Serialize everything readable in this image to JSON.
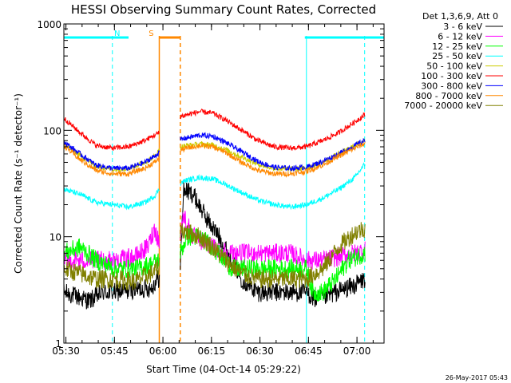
{
  "chart_data": {
    "type": "line",
    "title": "HESSI Observing Summary Count Rates, Corrected",
    "xlabel": "Start Time (04-Oct-14 05:29:22)",
    "ylabel": "Corrected Count Rate (s⁻¹ detector⁻¹)",
    "x_range_minutes": [
      0,
      99
    ],
    "x_ticks": [
      {
        "m": 0.63,
        "label": "05:30"
      },
      {
        "m": 15.63,
        "label": "05:45"
      },
      {
        "m": 30.63,
        "label": "06:00"
      },
      {
        "m": 45.63,
        "label": "06:15"
      },
      {
        "m": 60.63,
        "label": "06:30"
      },
      {
        "m": 75.63,
        "label": "06:45"
      },
      {
        "m": 90.63,
        "label": "07:00"
      }
    ],
    "y_scale": "log",
    "ylim": [
      1,
      1000
    ],
    "y_tick_labels": [
      "1",
      "10",
      "100",
      "1000"
    ],
    "legend_header": "Det 1,3,6,9, Att 0",
    "series": [
      {
        "name": "3 - 6 keV",
        "color": "#000000",
        "points": [
          [
            0,
            3
          ],
          [
            8,
            2.5
          ],
          [
            12,
            3
          ],
          [
            16,
            3
          ],
          [
            22,
            3.2
          ],
          [
            27,
            3.3
          ],
          [
            29,
            4
          ],
          [
            36,
            5
          ],
          [
            37,
            28
          ],
          [
            40,
            25
          ],
          [
            44,
            15
          ],
          [
            48,
            10
          ],
          [
            52,
            6
          ],
          [
            55,
            4
          ],
          [
            60,
            3
          ],
          [
            65,
            3
          ],
          [
            70,
            3
          ],
          [
            75,
            3
          ],
          [
            78,
            2.5
          ],
          [
            84,
            3
          ],
          [
            90,
            3.5
          ],
          [
            93,
            4
          ]
        ]
      },
      {
        "name": "6 - 12 keV",
        "color": "#ff00ff",
        "points": [
          [
            0,
            6
          ],
          [
            10,
            6
          ],
          [
            16,
            6
          ],
          [
            22,
            6.5
          ],
          [
            26,
            8
          ],
          [
            28,
            12
          ],
          [
            30,
            8
          ],
          [
            36,
            10
          ],
          [
            37,
            16
          ],
          [
            40,
            10
          ],
          [
            46,
            8
          ],
          [
            52,
            7
          ],
          [
            58,
            7
          ],
          [
            65,
            7
          ],
          [
            70,
            7
          ],
          [
            75,
            6
          ],
          [
            80,
            6
          ],
          [
            85,
            6.5
          ],
          [
            90,
            7
          ],
          [
            93,
            7.5
          ]
        ]
      },
      {
        "name": "12 - 25 keV",
        "color": "#00ff00",
        "points": [
          [
            0,
            7
          ],
          [
            5,
            8
          ],
          [
            10,
            6
          ],
          [
            16,
            5
          ],
          [
            22,
            5
          ],
          [
            27,
            5.5
          ],
          [
            29,
            6
          ],
          [
            36,
            7
          ],
          [
            38,
            10
          ],
          [
            42,
            10
          ],
          [
            46,
            8
          ],
          [
            52,
            5
          ],
          [
            58,
            5
          ],
          [
            63,
            5
          ],
          [
            68,
            5
          ],
          [
            72,
            5
          ],
          [
            75,
            5
          ],
          [
            77,
            3
          ],
          [
            80,
            3
          ],
          [
            84,
            4
          ],
          [
            88,
            6
          ],
          [
            93,
            7
          ]
        ]
      },
      {
        "name": "25 - 50 keV",
        "color": "#00ffff",
        "points": [
          [
            0,
            28
          ],
          [
            5,
            25
          ],
          [
            10,
            21
          ],
          [
            15,
            20
          ],
          [
            20,
            19
          ],
          [
            25,
            21
          ],
          [
            28,
            24
          ],
          [
            29.5,
            28
          ],
          [
            36,
            32
          ],
          [
            38,
            34
          ],
          [
            42,
            36
          ],
          [
            46,
            35
          ],
          [
            50,
            31
          ],
          [
            55,
            26
          ],
          [
            60,
            22
          ],
          [
            65,
            20
          ],
          [
            70,
            19
          ],
          [
            75,
            20
          ],
          [
            80,
            23
          ],
          [
            85,
            28
          ],
          [
            90,
            36
          ],
          [
            93,
            48
          ]
        ]
      },
      {
        "name": "50 - 100 keV",
        "color": "#cccc00",
        "points": [
          [
            0,
            75
          ],
          [
            5,
            58
          ],
          [
            10,
            46
          ],
          [
            15,
            43
          ],
          [
            20,
            44
          ],
          [
            25,
            50
          ],
          [
            28,
            57
          ],
          [
            29.5,
            65
          ],
          [
            36,
            70
          ],
          [
            38,
            72
          ],
          [
            42,
            74
          ],
          [
            46,
            73
          ],
          [
            50,
            66
          ],
          [
            55,
            56
          ],
          [
            60,
            48
          ],
          [
            65,
            44
          ],
          [
            70,
            43
          ],
          [
            75,
            44
          ],
          [
            80,
            50
          ],
          [
            85,
            60
          ],
          [
            90,
            72
          ],
          [
            93,
            80
          ]
        ]
      },
      {
        "name": "100 - 300 keV",
        "color": "#ff0000",
        "points": [
          [
            0,
            130
          ],
          [
            5,
            95
          ],
          [
            10,
            72
          ],
          [
            15,
            68
          ],
          [
            20,
            70
          ],
          [
            25,
            80
          ],
          [
            28,
            90
          ],
          [
            29.5,
            95
          ],
          [
            36,
            135
          ],
          [
            38,
            140
          ],
          [
            42,
            150
          ],
          [
            46,
            145
          ],
          [
            50,
            125
          ],
          [
            55,
            100
          ],
          [
            60,
            80
          ],
          [
            65,
            70
          ],
          [
            70,
            68
          ],
          [
            75,
            70
          ],
          [
            80,
            80
          ],
          [
            85,
            95
          ],
          [
            90,
            120
          ],
          [
            93,
            140
          ]
        ]
      },
      {
        "name": "300 - 800 keV",
        "color": "#0000ff",
        "points": [
          [
            0,
            78
          ],
          [
            5,
            60
          ],
          [
            10,
            47
          ],
          [
            15,
            44
          ],
          [
            20,
            44
          ],
          [
            25,
            50
          ],
          [
            28,
            57
          ],
          [
            29.5,
            62
          ],
          [
            36,
            82
          ],
          [
            38,
            85
          ],
          [
            42,
            90
          ],
          [
            46,
            88
          ],
          [
            50,
            77
          ],
          [
            55,
            63
          ],
          [
            60,
            51
          ],
          [
            65,
            45
          ],
          [
            70,
            44
          ],
          [
            75,
            45
          ],
          [
            80,
            51
          ],
          [
            85,
            60
          ],
          [
            90,
            72
          ],
          [
            93,
            80
          ]
        ]
      },
      {
        "name": "800 - 7000 keV",
        "color": "#ff8800",
        "points": [
          [
            0,
            72
          ],
          [
            5,
            53
          ],
          [
            10,
            42
          ],
          [
            15,
            39
          ],
          [
            20,
            39
          ],
          [
            25,
            44
          ],
          [
            28,
            50
          ],
          [
            29.5,
            55
          ],
          [
            36,
            65
          ],
          [
            38,
            68
          ],
          [
            42,
            72
          ],
          [
            46,
            70
          ],
          [
            50,
            62
          ],
          [
            55,
            50
          ],
          [
            60,
            42
          ],
          [
            65,
            39
          ],
          [
            70,
            39
          ],
          [
            75,
            41
          ],
          [
            80,
            47
          ],
          [
            85,
            57
          ],
          [
            90,
            68
          ],
          [
            93,
            75
          ]
        ]
      },
      {
        "name": "7000 - 20000 keV",
        "color": "#808000",
        "points": [
          [
            0,
            5
          ],
          [
            5,
            4.5
          ],
          [
            10,
            4
          ],
          [
            16,
            4
          ],
          [
            22,
            3.8
          ],
          [
            27,
            4.5
          ],
          [
            29,
            5
          ],
          [
            36,
            12
          ],
          [
            38,
            11
          ],
          [
            42,
            10
          ],
          [
            46,
            8
          ],
          [
            50,
            6
          ],
          [
            55,
            4.5
          ],
          [
            60,
            4
          ],
          [
            65,
            4
          ],
          [
            70,
            4
          ],
          [
            75,
            4
          ],
          [
            80,
            5
          ],
          [
            85,
            8
          ],
          [
            90,
            11
          ],
          [
            93,
            12
          ]
        ]
      }
    ],
    "markers": [
      {
        "label": "N",
        "color": "#00ffff",
        "bars": [
          [
            0,
            20
          ],
          [
            74.5,
            99
          ]
        ]
      },
      {
        "label": "S",
        "color": "#ff8800",
        "bars": [
          [
            29.5,
            36
          ]
        ]
      }
    ],
    "vlines": [
      {
        "m": 0,
        "color": "#00ffff",
        "dash": false
      },
      {
        "m": 15,
        "color": "#00ffff",
        "dash": true
      },
      {
        "m": 75,
        "color": "#00ffff",
        "dash": false
      },
      {
        "m": 93,
        "color": "#00ffff",
        "dash": true
      },
      {
        "m": 29.5,
        "color": "#ff8800",
        "dash": false
      },
      {
        "m": 36,
        "color": "#ff8800",
        "dash": true
      }
    ],
    "gaps": [
      [
        29.6,
        35.9
      ]
    ],
    "grid": false,
    "legend_position": "right"
  },
  "footer": {
    "timestamp": "26-May-2017 05:43"
  }
}
